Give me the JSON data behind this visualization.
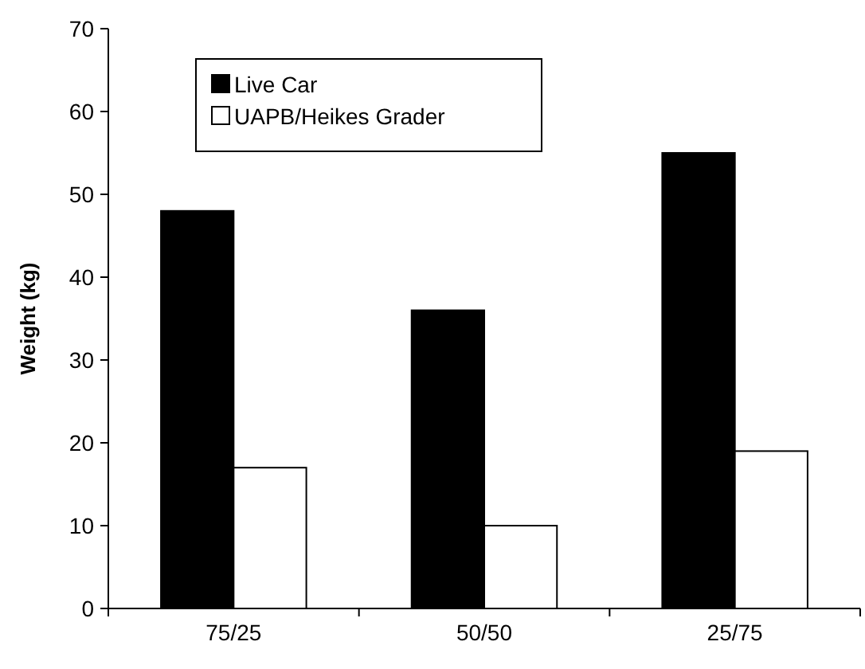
{
  "chart_data": {
    "type": "bar",
    "ylabel": "Weight (kg)",
    "categories": [
      "75/25",
      "50/50",
      "25/75"
    ],
    "series": [
      {
        "name": "Live Car",
        "color": "#000000",
        "values": [
          48,
          36,
          55
        ]
      },
      {
        "name": "UAPB/Heikes Grader",
        "color": "#ffffff",
        "values": [
          17,
          10,
          19
        ]
      }
    ],
    "ylim": [
      0,
      70
    ],
    "yticks": [
      0,
      10,
      20,
      30,
      40,
      50,
      60,
      70
    ],
    "grid": false,
    "legend": "top left"
  }
}
